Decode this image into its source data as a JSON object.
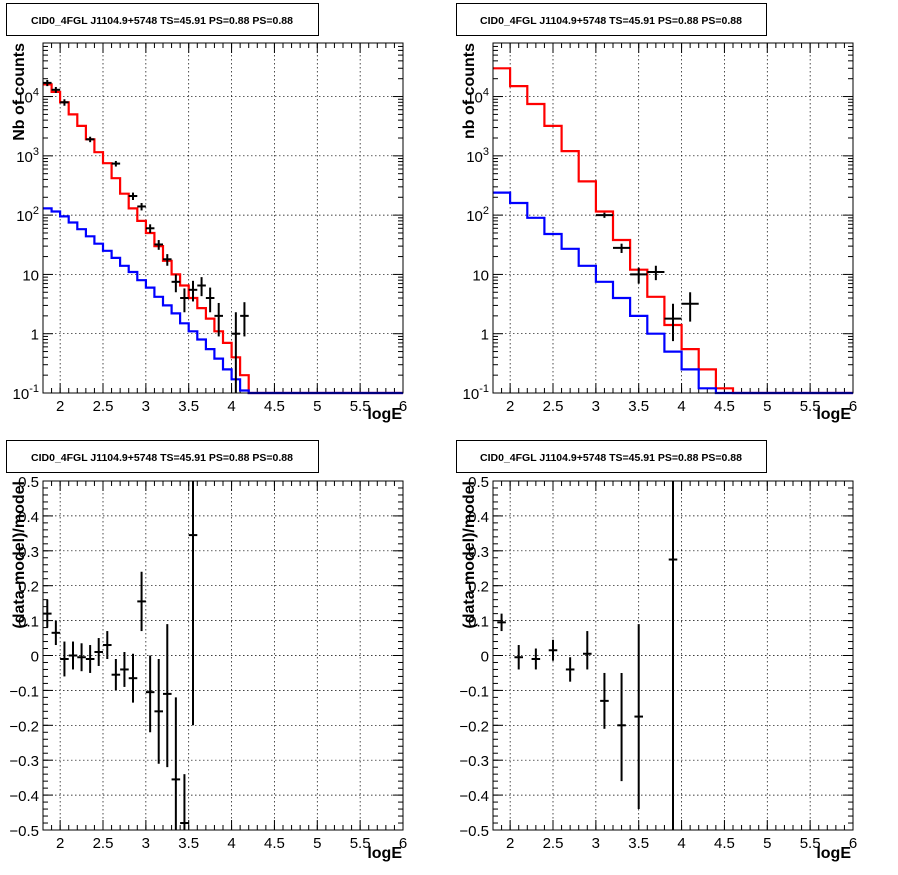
{
  "chart_data": [
    {
      "type": "line",
      "title": "CID0_4FGL J1104.9+5748 TS=45.91 PS=0.88 PS=0.88",
      "xlabel": "logE",
      "ylabel": "Nb of counts",
      "xlim": [
        1.8,
        6.0
      ],
      "ylim": [
        0.1,
        80000
      ],
      "yscale": "log",
      "grid": true,
      "x_ticks": [
        "2",
        "2.5",
        "3",
        "3.5",
        "4",
        "4.5",
        "5",
        "5.5",
        "6"
      ],
      "y_ticks": [
        "10^{-1}",
        "1",
        "10",
        "10^{2}",
        "10^{3}",
        "10^{4}"
      ],
      "bin_edges": [
        1.8,
        1.9,
        2.0,
        2.1,
        2.2,
        2.3,
        2.4,
        2.5,
        2.6,
        2.7,
        2.8,
        2.9,
        3.0,
        3.1,
        3.2,
        3.3,
        3.4,
        3.5,
        3.6,
        3.7,
        3.8,
        3.9,
        4.0,
        4.1,
        4.2,
        4.3,
        4.4,
        4.5,
        4.6,
        4.7,
        4.8,
        4.9,
        5.0,
        5.1,
        5.2,
        5.3,
        5.4,
        5.5,
        5.6,
        5.7,
        5.8,
        5.9,
        6.0
      ],
      "series": [
        {
          "color": "#ff0000",
          "values": [
            16000,
            12000,
            8000,
            5000,
            3200,
            1900,
            1150,
            750,
            420,
            230,
            130,
            80,
            50,
            30,
            17,
            10,
            6.5,
            4.0,
            2.7,
            1.8,
            1.1,
            0.7,
            0.4,
            0.2,
            0.1,
            0.08,
            0.08,
            0.08,
            0.08,
            0.08,
            0.08,
            0.08,
            0.08,
            0.08,
            0.08,
            0.08,
            0.08,
            0.08,
            0.08,
            0.08,
            0.08,
            0.08
          ]
        },
        {
          "color": "#0000ff",
          "values": [
            130,
            115,
            95,
            75,
            58,
            44,
            33,
            25,
            19,
            14,
            11,
            8,
            6,
            4.2,
            3.0,
            2.2,
            1.5,
            1.1,
            0.8,
            0.55,
            0.38,
            0.25,
            0.17,
            0.11,
            0.08,
            0.08,
            0.08,
            0.08,
            0.08,
            0.08,
            0.08,
            0.08,
            0.08,
            0.08,
            0.08,
            0.08,
            0.08,
            0.08,
            0.08,
            0.08,
            0.08,
            0.08
          ]
        }
      ],
      "points": [
        {
          "x": 1.85,
          "y": 17000,
          "lo": 15000,
          "hi": 19000
        },
        {
          "x": 1.95,
          "y": 13000,
          "lo": 11500,
          "hi": 14500
        },
        {
          "x": 2.05,
          "y": 8000,
          "lo": 7000,
          "hi": 9000
        },
        {
          "x": 2.35,
          "y": 1900,
          "lo": 1700,
          "hi": 2100
        },
        {
          "x": 2.65,
          "y": 740,
          "lo": 660,
          "hi": 820
        },
        {
          "x": 2.85,
          "y": 210,
          "lo": 180,
          "hi": 240
        },
        {
          "x": 2.95,
          "y": 140,
          "lo": 120,
          "hi": 160
        },
        {
          "x": 3.05,
          "y": 60,
          "lo": 50,
          "hi": 70
        },
        {
          "x": 3.15,
          "y": 32,
          "lo": 26,
          "hi": 38
        },
        {
          "x": 3.25,
          "y": 18,
          "lo": 14,
          "hi": 22
        },
        {
          "x": 3.35,
          "y": 7.5,
          "lo": 5,
          "hi": 10
        },
        {
          "x": 3.45,
          "y": 4.0,
          "lo": 2.3,
          "hi": 5.8
        },
        {
          "x": 3.55,
          "y": 5.5,
          "lo": 3.5,
          "hi": 7.8
        },
        {
          "x": 3.65,
          "y": 6.5,
          "lo": 4.3,
          "hi": 9
        },
        {
          "x": 3.75,
          "y": 4.0,
          "lo": 2.3,
          "hi": 6
        },
        {
          "x": 3.85,
          "y": 2.0,
          "lo": 0.9,
          "hi": 3.3
        },
        {
          "x": 4.05,
          "y": 1.0,
          "lo": 0.1,
          "hi": 2.3
        },
        {
          "x": 4.15,
          "y": 2.0,
          "lo": 0.9,
          "hi": 3.4
        }
      ]
    },
    {
      "type": "line",
      "title": "CID0_4FGL J1104.9+5748 TS=45.91 PS=0.88 PS=0.88",
      "xlabel": "logE",
      "ylabel": "nb of counts",
      "xlim": [
        1.8,
        6.0
      ],
      "ylim": [
        0.1,
        80000
      ],
      "yscale": "log",
      "grid": true,
      "x_ticks": [
        "2",
        "2.5",
        "3",
        "3.5",
        "4",
        "4.5",
        "5",
        "5.5",
        "6"
      ],
      "y_ticks": [
        "10^{-1}",
        "1",
        "10",
        "10^{2}",
        "10^{3}",
        "10^{4}"
      ],
      "bin_edges": [
        1.8,
        2.0,
        2.2,
        2.4,
        2.6,
        2.8,
        3.0,
        3.2,
        3.4,
        3.6,
        3.8,
        4.0,
        4.2,
        4.4,
        4.6,
        4.8,
        5.0,
        5.2,
        5.4,
        5.6,
        5.8,
        6.0
      ],
      "series": [
        {
          "color": "#ff0000",
          "values": [
            30000,
            15000,
            7500,
            3200,
            1200,
            370,
            115,
            38,
            12,
            4.2,
            1.4,
            0.55,
            0.25,
            0.12,
            0.08,
            0.08,
            0.08,
            0.08,
            0.08,
            0.08,
            0.08
          ]
        },
        {
          "color": "#0000ff",
          "values": [
            240,
            160,
            90,
            48,
            27,
            14,
            7.5,
            4.0,
            2.0,
            1.0,
            0.5,
            0.25,
            0.12,
            0.08,
            0.08,
            0.08,
            0.08,
            0.08,
            0.08,
            0.08,
            0.08
          ]
        }
      ],
      "points": [
        {
          "x": 3.1,
          "y": 100,
          "lo": 90,
          "hi": 110
        },
        {
          "x": 3.3,
          "y": 28,
          "lo": 23,
          "hi": 33
        },
        {
          "x": 3.5,
          "y": 10,
          "lo": 7,
          "hi": 13
        },
        {
          "x": 3.7,
          "y": 11,
          "lo": 8,
          "hi": 14
        },
        {
          "x": 3.9,
          "y": 1.8,
          "lo": 0.75,
          "hi": 3.2
        },
        {
          "x": 4.1,
          "y": 3.2,
          "lo": 1.6,
          "hi": 5
        }
      ]
    },
    {
      "type": "scatter",
      "title": "CID0_4FGL J1104.9+5748 TS=45.91 PS=0.88 PS=0.88",
      "xlabel": "logE",
      "ylabel": "(data-model)/model",
      "xlim": [
        1.8,
        6.0
      ],
      "ylim": [
        -0.5,
        0.5
      ],
      "grid": true,
      "x_ticks": [
        "2",
        "2.5",
        "3",
        "3.5",
        "4",
        "4.5",
        "5",
        "5.5",
        "6"
      ],
      "y_ticks": [
        "−0.5",
        "−0.4",
        "−0.3",
        "−0.2",
        "−0.1",
        "0",
        "0.1",
        "0.2",
        "0.3",
        "0.4",
        "0.5"
      ],
      "points": [
        {
          "x": 1.85,
          "y": 0.12,
          "lo": 0.08,
          "hi": 0.16
        },
        {
          "x": 1.95,
          "y": 0.065,
          "lo": 0.03,
          "hi": 0.1
        },
        {
          "x": 2.05,
          "y": -0.01,
          "lo": -0.06,
          "hi": 0.04
        },
        {
          "x": 2.15,
          "y": 0.0,
          "lo": -0.04,
          "hi": 0.04
        },
        {
          "x": 2.25,
          "y": -0.005,
          "lo": -0.045,
          "hi": 0.035
        },
        {
          "x": 2.35,
          "y": -0.01,
          "lo": -0.05,
          "hi": 0.03
        },
        {
          "x": 2.45,
          "y": 0.01,
          "lo": -0.03,
          "hi": 0.05
        },
        {
          "x": 2.55,
          "y": 0.03,
          "lo": -0.01,
          "hi": 0.07
        },
        {
          "x": 2.65,
          "y": -0.055,
          "lo": -0.1,
          "hi": -0.01
        },
        {
          "x": 2.75,
          "y": -0.04,
          "lo": -0.09,
          "hi": 0.01
        },
        {
          "x": 2.85,
          "y": -0.065,
          "lo": -0.135,
          "hi": 0.005
        },
        {
          "x": 2.95,
          "y": 0.155,
          "lo": 0.07,
          "hi": 0.24
        },
        {
          "x": 3.05,
          "y": -0.105,
          "lo": -0.22,
          "hi": 0.0
        },
        {
          "x": 3.15,
          "y": -0.16,
          "lo": -0.31,
          "hi": -0.01
        },
        {
          "x": 3.25,
          "y": -0.11,
          "lo": -0.32,
          "hi": 0.09
        },
        {
          "x": 3.35,
          "y": -0.355,
          "lo": -0.5,
          "hi": -0.12
        },
        {
          "x": 3.45,
          "y": -0.48,
          "lo": -0.5,
          "hi": -0.34
        },
        {
          "x": 3.55,
          "y": 0.345,
          "lo": -0.2,
          "hi": 0.5
        }
      ]
    },
    {
      "type": "scatter",
      "title": "CID0_4FGL J1104.9+5748 TS=45.91 PS=0.88 PS=0.88",
      "xlabel": "logE",
      "ylabel": "(data-model)/model",
      "xlim": [
        1.8,
        6.0
      ],
      "ylim": [
        -0.5,
        0.5
      ],
      "grid": true,
      "x_ticks": [
        "2",
        "2.5",
        "3",
        "3.5",
        "4",
        "4.5",
        "5",
        "5.5",
        "6"
      ],
      "y_ticks": [
        "−0.5",
        "−0.4",
        "−0.3",
        "−0.2",
        "−0.1",
        "0",
        "0.1",
        "0.2",
        "0.3",
        "0.4",
        "0.5"
      ],
      "points": [
        {
          "x": 1.9,
          "y": 0.095,
          "lo": 0.07,
          "hi": 0.12
        },
        {
          "x": 2.1,
          "y": -0.005,
          "lo": -0.04,
          "hi": 0.03
        },
        {
          "x": 2.3,
          "y": -0.01,
          "lo": -0.04,
          "hi": 0.02
        },
        {
          "x": 2.5,
          "y": 0.015,
          "lo": -0.015,
          "hi": 0.045
        },
        {
          "x": 2.7,
          "y": -0.04,
          "lo": -0.075,
          "hi": -0.005
        },
        {
          "x": 2.9,
          "y": 0.005,
          "lo": -0.04,
          "hi": 0.07
        },
        {
          "x": 3.1,
          "y": -0.13,
          "lo": -0.21,
          "hi": -0.05
        },
        {
          "x": 3.3,
          "y": -0.2,
          "lo": -0.36,
          "hi": -0.05
        },
        {
          "x": 3.5,
          "y": -0.175,
          "lo": -0.44,
          "hi": 0.09
        },
        {
          "x": 3.9,
          "y": 0.275,
          "lo": -0.5,
          "hi": 0.5
        }
      ]
    }
  ]
}
